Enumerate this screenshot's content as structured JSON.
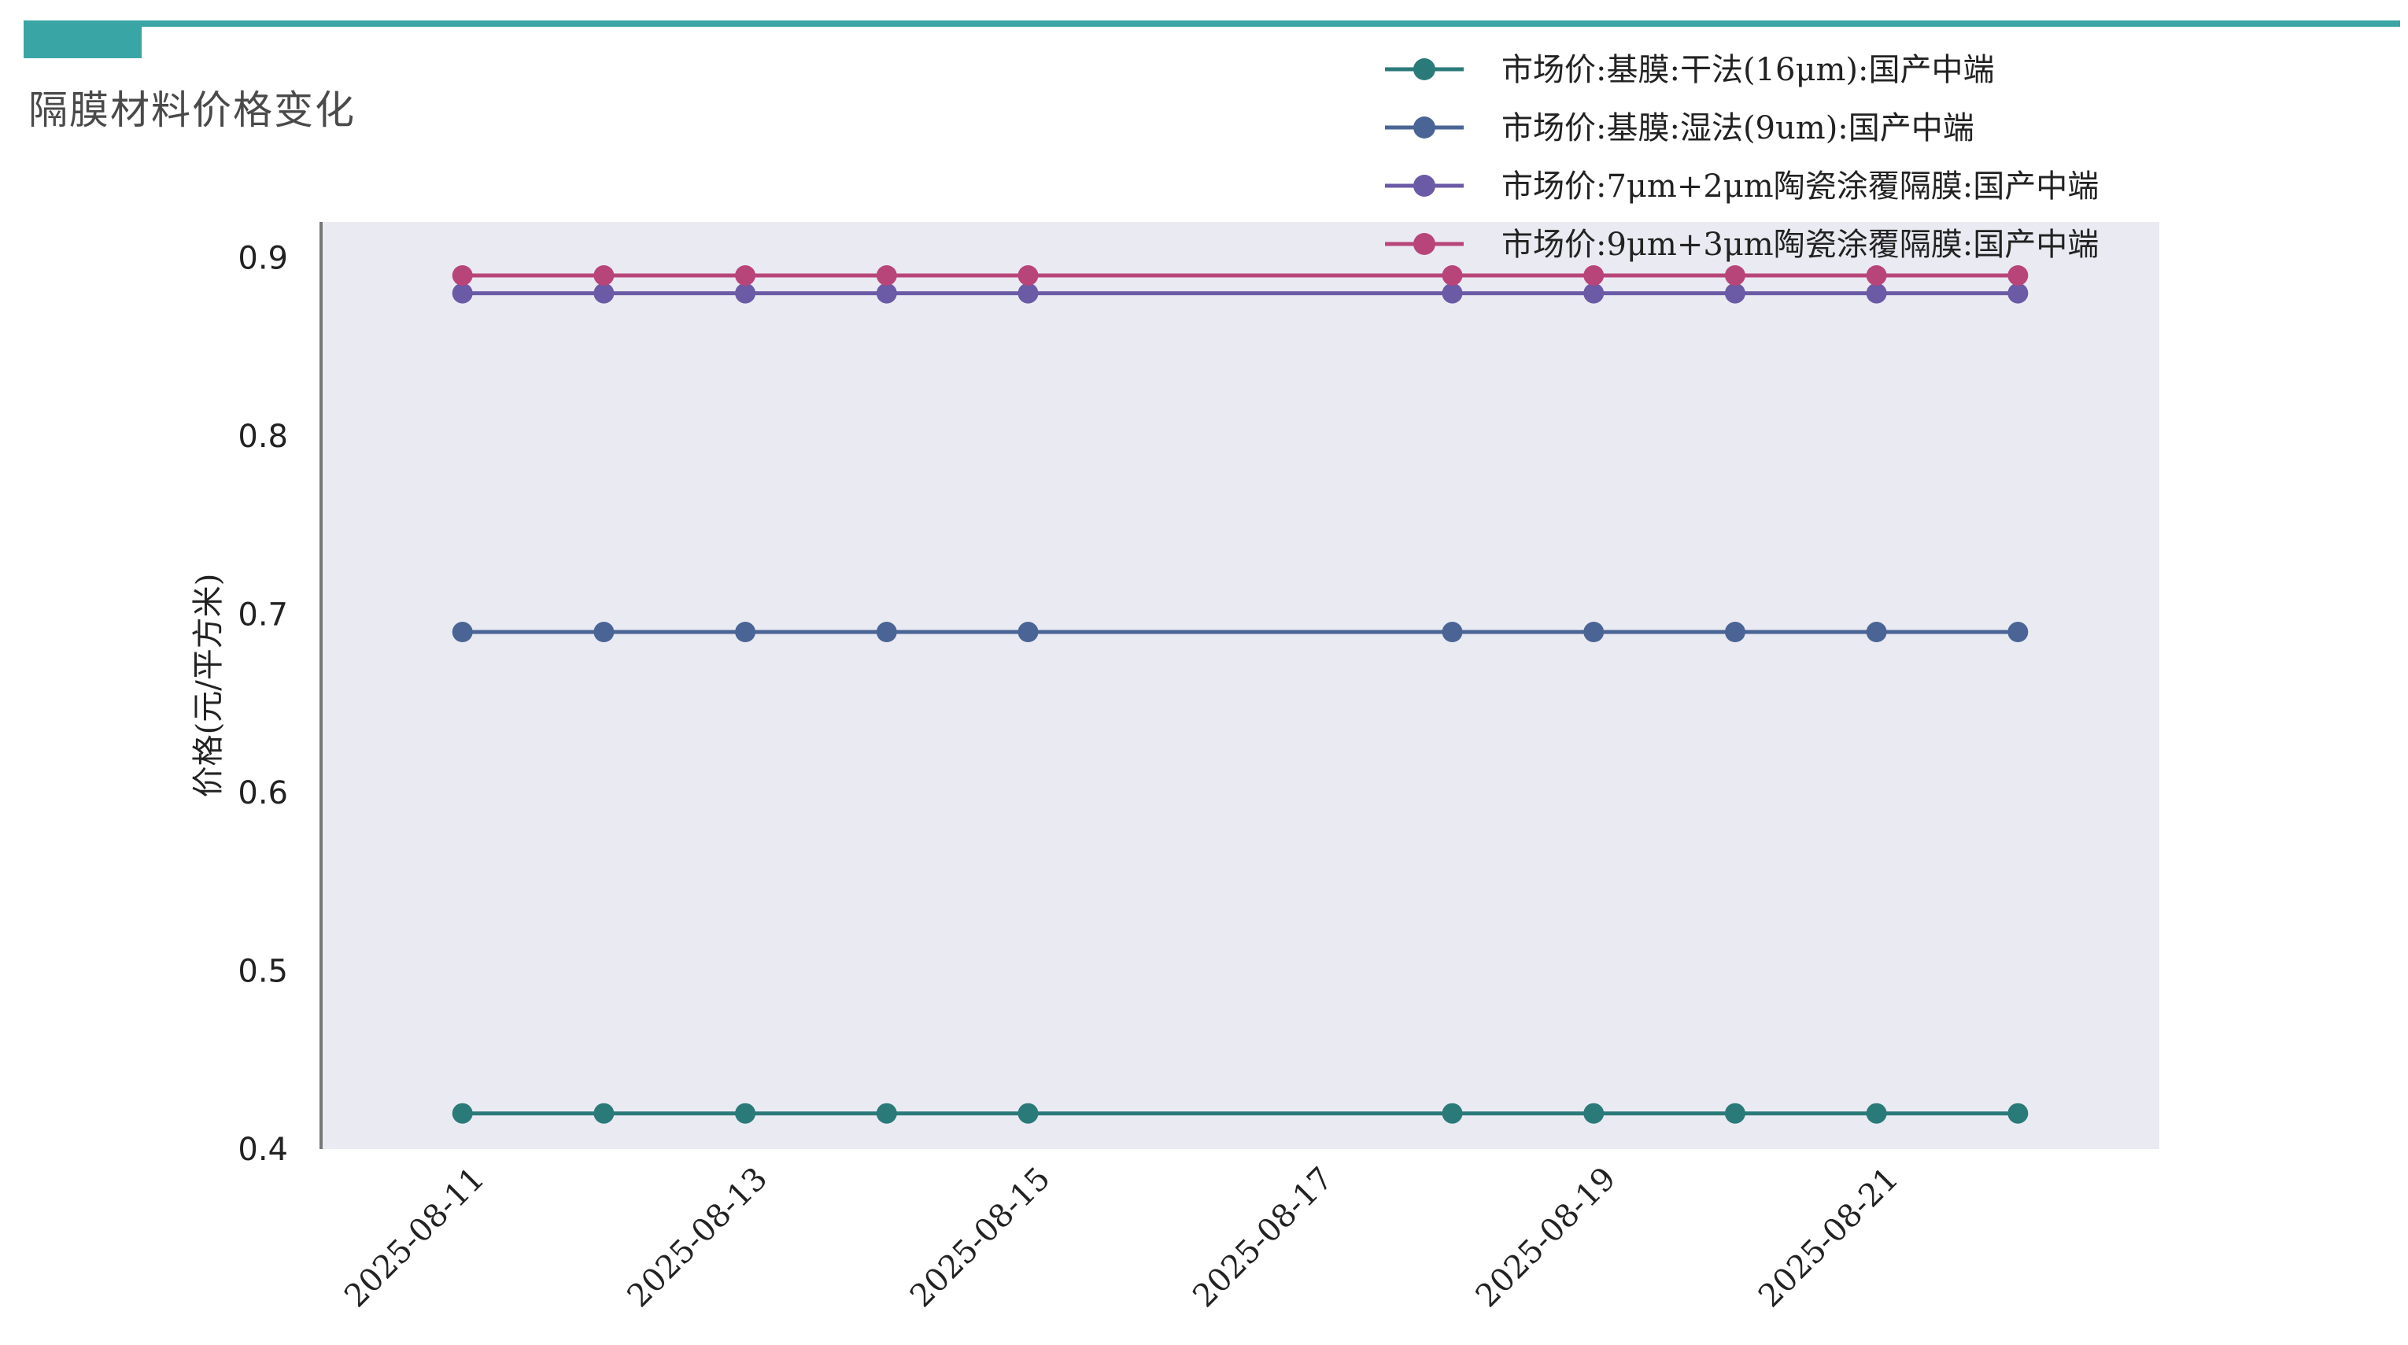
{
  "page": {
    "title": "隔膜材料价格变化"
  },
  "chart_data": {
    "type": "line",
    "title": "",
    "xlabel": "",
    "ylabel": "价格(元/平方米)",
    "ylim": [
      0.4,
      0.92
    ],
    "yticks": [
      0.4,
      0.5,
      0.6,
      0.7,
      0.8,
      0.9
    ],
    "xticks": [
      "2025-08-11",
      "2025-08-13",
      "2025-08-15",
      "2025-08-17",
      "2025-08-19",
      "2025-08-21"
    ],
    "x": [
      "2025-08-11",
      "2025-08-12",
      "2025-08-13",
      "2025-08-14",
      "2025-08-15",
      "2025-08-18",
      "2025-08-19",
      "2025-08-20",
      "2025-08-21",
      "2025-08-22"
    ],
    "xlim": [
      "2025-08-10",
      "2025-08-23"
    ],
    "grid": false,
    "legend": "top-right",
    "series": [
      {
        "name": "市场价:基膜:干法(16μm):国产中端",
        "color": "#2b7a7a",
        "values": [
          0.42,
          0.42,
          0.42,
          0.42,
          0.42,
          0.42,
          0.42,
          0.42,
          0.42,
          0.42
        ]
      },
      {
        "name": "市场价:基膜:湿法(9um):国产中端",
        "color": "#4a6496",
        "values": [
          0.69,
          0.69,
          0.69,
          0.69,
          0.69,
          0.69,
          0.69,
          0.69,
          0.69,
          0.69
        ]
      },
      {
        "name": "市场价:7μm+2μm陶瓷涂覆隔膜:国产中端",
        "color": "#6b5aa6",
        "values": [
          0.88,
          0.88,
          0.88,
          0.88,
          0.88,
          0.88,
          0.88,
          0.88,
          0.88,
          0.88
        ]
      },
      {
        "name": "市场价:9μm+3μm陶瓷涂覆隔膜:国产中端",
        "color": "#b8457a",
        "values": [
          0.89,
          0.89,
          0.89,
          0.89,
          0.89,
          0.89,
          0.89,
          0.89,
          0.89,
          0.89
        ]
      }
    ]
  }
}
